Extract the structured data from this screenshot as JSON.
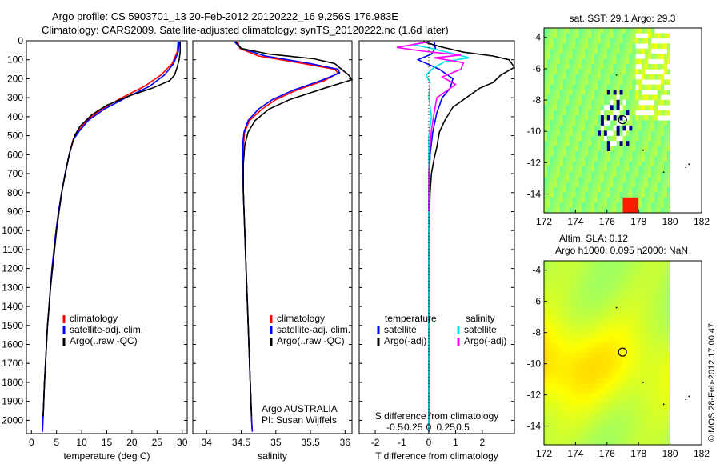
{
  "header": {
    "line1": "Argo profile: CS 5903701_13 20-Feb-2012 20120222_16 9.256S 176.983E",
    "line2": "Climatology: CARS2009. Satellite-adjusted climatology: synTS_20120222.nc (1.6d later)"
  },
  "colors": {
    "clim": "#ff0000",
    "sat": "#0000ff",
    "argo": "#000000",
    "sat_s": "#00e5e5",
    "argo_s": "#ff00ff"
  },
  "chart_data": [
    {
      "id": "temperature",
      "type": "line",
      "xlabel": "temperature (deg C)",
      "ylabel": "",
      "xlim": [
        -1,
        31
      ],
      "ylim": [
        2070,
        0
      ],
      "y_reversed": true,
      "xticks": [
        "0",
        "5",
        "10",
        "15",
        "20",
        "25",
        "30"
      ],
      "yticks": [
        "0",
        "100",
        "200",
        "300",
        "400",
        "500",
        "600",
        "700",
        "800",
        "900",
        "1000",
        "1100",
        "1200",
        "1300",
        "1400",
        "1500",
        "1600",
        "1700",
        "1800",
        "1900",
        "2000"
      ],
      "legend": [
        "climatology",
        "satellite-adj. clim.",
        "Argo(..raw -QC)"
      ],
      "series": [
        {
          "name": "climatology",
          "color": "#ff0000",
          "points": [
            [
              29.2,
              5
            ],
            [
              29.0,
              60
            ],
            [
              28.0,
              120
            ],
            [
              25.8,
              180
            ],
            [
              22.5,
              240
            ],
            [
              18.0,
              300
            ],
            [
              14.0,
              360
            ],
            [
              11.0,
              420
            ],
            [
              9.2,
              480
            ],
            [
              8.3,
              520
            ],
            [
              7.5,
              600
            ],
            [
              6.7,
              700
            ],
            [
              6.0,
              800
            ],
            [
              5.4,
              900
            ],
            [
              4.9,
              1000
            ],
            [
              4.5,
              1100
            ],
            [
              4.1,
              1200
            ],
            [
              3.8,
              1300
            ],
            [
              3.5,
              1400
            ],
            [
              3.2,
              1500
            ],
            [
              3.0,
              1600
            ],
            [
              2.8,
              1700
            ],
            [
              2.6,
              1800
            ],
            [
              2.45,
              1900
            ],
            [
              2.3,
              2000
            ],
            [
              2.2,
              2060
            ]
          ]
        },
        {
          "name": "satellite-adj. clim.",
          "color": "#0000ff",
          "points": [
            [
              29.4,
              5
            ],
            [
              29.2,
              60
            ],
            [
              28.3,
              120
            ],
            [
              26.5,
              180
            ],
            [
              23.5,
              240
            ],
            [
              18.8,
              300
            ],
            [
              14.5,
              360
            ],
            [
              11.3,
              420
            ],
            [
              9.4,
              480
            ],
            [
              8.4,
              520
            ],
            [
              7.5,
              600
            ],
            [
              6.7,
              700
            ],
            [
              6.0,
              800
            ],
            [
              5.4,
              900
            ],
            [
              4.9,
              1000
            ],
            [
              4.5,
              1100
            ],
            [
              4.1,
              1200
            ],
            [
              3.8,
              1300
            ],
            [
              3.5,
              1400
            ],
            [
              3.2,
              1500
            ],
            [
              3.0,
              1600
            ],
            [
              2.8,
              1700
            ],
            [
              2.6,
              1800
            ],
            [
              2.45,
              1900
            ],
            [
              2.3,
              2000
            ],
            [
              2.2,
              2060
            ]
          ]
        },
        {
          "name": "Argo(..raw -QC)",
          "color": "#000000",
          "points": [
            [
              29.6,
              5
            ],
            [
              29.6,
              60
            ],
            [
              29.4,
              100
            ],
            [
              29.0,
              140
            ],
            [
              28.5,
              180
            ],
            [
              27.5,
              210
            ],
            [
              24.0,
              250
            ],
            [
              19.5,
              290
            ],
            [
              15.0,
              340
            ],
            [
              12.0,
              390
            ],
            [
              9.7,
              450
            ],
            [
              8.6,
              500
            ],
            [
              7.7,
              580
            ],
            [
              6.9,
              680
            ],
            [
              6.1,
              790
            ],
            [
              5.5,
              900
            ],
            [
              5.0,
              1000
            ],
            [
              4.6,
              1100
            ],
            [
              4.2,
              1200
            ],
            [
              3.8,
              1300
            ],
            [
              3.5,
              1400
            ],
            [
              3.2,
              1500
            ],
            [
              3.0,
              1600
            ],
            [
              2.8,
              1700
            ],
            [
              2.6,
              1800
            ],
            [
              2.45,
              1900
            ],
            [
              2.35,
              1980
            ]
          ]
        }
      ]
    },
    {
      "id": "salinity",
      "type": "line",
      "xlabel": "salinity",
      "ylabel": "",
      "xlim": [
        33.8,
        36.1
      ],
      "ylim": [
        2070,
        0
      ],
      "y_reversed": true,
      "xticks": [
        "34",
        "34.5",
        "35",
        "35.5",
        "36"
      ],
      "legend": [
        "climatology",
        "satellite-adj. clim.",
        "Argo(..raw -QC)"
      ],
      "annotation": [
        "Argo AUSTRALIA",
        "PI: Susan Wijffels"
      ],
      "series": [
        {
          "name": "climatology",
          "color": "#ff0000",
          "points": [
            [
              34.45,
              5
            ],
            [
              34.48,
              40
            ],
            [
              34.75,
              80
            ],
            [
              35.4,
              120
            ],
            [
              35.85,
              150
            ],
            [
              35.9,
              170
            ],
            [
              35.7,
              210
            ],
            [
              35.3,
              260
            ],
            [
              35.0,
              310
            ],
            [
              34.8,
              360
            ],
            [
              34.62,
              420
            ],
            [
              34.55,
              480
            ],
            [
              34.53,
              550
            ],
            [
              34.52,
              650
            ],
            [
              34.53,
              800
            ],
            [
              34.55,
              1000
            ],
            [
              34.57,
              1200
            ],
            [
              34.59,
              1400
            ],
            [
              34.61,
              1600
            ],
            [
              34.63,
              1800
            ],
            [
              34.65,
              2000
            ],
            [
              34.66,
              2060
            ]
          ]
        },
        {
          "name": "satellite-adj. clim.",
          "color": "#0000ff",
          "points": [
            [
              34.4,
              5
            ],
            [
              34.5,
              40
            ],
            [
              34.85,
              80
            ],
            [
              35.5,
              120
            ],
            [
              35.9,
              150
            ],
            [
              35.92,
              170
            ],
            [
              35.65,
              210
            ],
            [
              35.25,
              260
            ],
            [
              34.95,
              310
            ],
            [
              34.75,
              360
            ],
            [
              34.6,
              420
            ],
            [
              34.54,
              480
            ],
            [
              34.52,
              550
            ],
            [
              34.52,
              650
            ],
            [
              34.53,
              800
            ],
            [
              34.55,
              1000
            ],
            [
              34.57,
              1200
            ],
            [
              34.59,
              1400
            ],
            [
              34.61,
              1600
            ],
            [
              34.63,
              1800
            ],
            [
              34.65,
              2000
            ],
            [
              34.66,
              2060
            ]
          ]
        },
        {
          "name": "Argo(..raw -QC)",
          "color": "#000000",
          "points": [
            [
              34.42,
              5
            ],
            [
              34.5,
              40
            ],
            [
              34.9,
              70
            ],
            [
              35.55,
              95
            ],
            [
              35.85,
              120
            ],
            [
              35.95,
              150
            ],
            [
              36.05,
              180
            ],
            [
              36.1,
              205
            ],
            [
              35.7,
              250
            ],
            [
              35.2,
              310
            ],
            [
              34.9,
              360
            ],
            [
              34.7,
              420
            ],
            [
              34.6,
              480
            ],
            [
              34.55,
              550
            ],
            [
              34.53,
              650
            ],
            [
              34.53,
              800
            ],
            [
              34.55,
              1000
            ],
            [
              34.57,
              1200
            ],
            [
              34.59,
              1400
            ],
            [
              34.61,
              1600
            ],
            [
              34.63,
              1800
            ],
            [
              34.65,
              1980
            ]
          ]
        }
      ]
    },
    {
      "id": "differences",
      "type": "line",
      "xlabel": "T difference from climatology",
      "xlabel_top": "S difference from climatology",
      "xlim": [
        -2.6,
        3.2
      ],
      "ylim": [
        2070,
        0
      ],
      "y_reversed": true,
      "xticks": [
        "-2",
        "-1",
        "0",
        "1",
        "2"
      ],
      "xticks_top": [
        "-0.5",
        "-0.25",
        "0",
        "0.25",
        "0.5"
      ],
      "legend_col1_title": "temperature",
      "legend_col2_title": "salinity",
      "legend": [
        "satellite",
        "Argo(-adj)",
        "satellite",
        "Argo(-adj)"
      ],
      "series": [
        {
          "name": "temperature satellite",
          "color": "#0000ff",
          "points": [
            [
              0.2,
              5
            ],
            [
              0.25,
              40
            ],
            [
              0.1,
              70
            ],
            [
              -0.4,
              100
            ],
            [
              0.4,
              150
            ],
            [
              0.9,
              200
            ],
            [
              0.8,
              250
            ],
            [
              0.5,
              300
            ],
            [
              0.3,
              380
            ],
            [
              0.15,
              480
            ],
            [
              0.05,
              600
            ],
            [
              0,
              800
            ],
            [
              0,
              1200
            ],
            [
              0,
              1600
            ],
            [
              0,
              2060
            ]
          ]
        },
        {
          "name": "temperature Argo(-adj)",
          "color": "#000000",
          "points": [
            [
              -0.2,
              5
            ],
            [
              0.4,
              30
            ],
            [
              1.3,
              60
            ],
            [
              2.4,
              80
            ],
            [
              3.0,
              100
            ],
            [
              3.2,
              140
            ],
            [
              2.7,
              180
            ],
            [
              2.4,
              220
            ],
            [
              1.9,
              250
            ],
            [
              1.5,
              290
            ],
            [
              0.9,
              350
            ],
            [
              0.6,
              420
            ],
            [
              0.4,
              480
            ],
            [
              0.3,
              560
            ],
            [
              0.2,
              620
            ],
            [
              0.1,
              700
            ],
            [
              0.05,
              800
            ],
            [
              0.03,
              900
            ],
            [
              0,
              1000
            ],
            [
              0,
              1500
            ],
            [
              0,
              2000
            ]
          ]
        },
        {
          "name": "salinity satellite",
          "color": "#00e5e5",
          "points": [
            [
              0,
              5
            ],
            [
              -0.6,
              20
            ],
            [
              0.1,
              40
            ],
            [
              1.0,
              70
            ],
            [
              1.5,
              90
            ],
            [
              0.6,
              110
            ],
            [
              0.2,
              140
            ],
            [
              -0.1,
              180
            ],
            [
              0.05,
              220
            ],
            [
              0.0,
              300
            ],
            [
              0.1,
              400
            ],
            [
              0.0,
              500
            ],
            [
              0,
              800
            ],
            [
              0,
              1200
            ],
            [
              0,
              1600
            ],
            [
              0,
              2060
            ]
          ]
        },
        {
          "name": "salinity Argo(-adj)",
          "color": "#ff00ff",
          "points": [
            [
              0,
              5
            ],
            [
              -1.2,
              35
            ],
            [
              -0.2,
              55
            ],
            [
              1.2,
              75
            ],
            [
              0.2,
              90
            ],
            [
              1.3,
              115
            ],
            [
              1.2,
              150
            ],
            [
              0.5,
              190
            ],
            [
              1.0,
              230
            ],
            [
              0.3,
              300
            ],
            [
              0.2,
              380
            ],
            [
              0.1,
              470
            ],
            [
              0.05,
              560
            ],
            [
              0,
              700
            ],
            [
              0,
              900
            ]
          ]
        }
      ]
    }
  ],
  "maps": {
    "top": {
      "title": "sat. SST: 29.1 Argo: 29.3",
      "title_line2": "",
      "xticks": [
        "172",
        "174",
        "176",
        "178",
        "180",
        "182"
      ],
      "yticks": [
        "-4",
        "-6",
        "-8",
        "-10",
        "-12",
        "-14"
      ],
      "xlim": [
        172,
        182
      ],
      "ylim": [
        -15.2,
        -3.4
      ],
      "profile_lon": 176.983,
      "profile_lat": -9.256,
      "colormap": "jet"
    },
    "bottom": {
      "title": "Altim. SLA: 0.12",
      "title_line2": "Argo h1000: 0.095 h2000: NaN",
      "xticks": [
        "172",
        "174",
        "176",
        "178",
        "180",
        "182"
      ],
      "yticks": [
        "-4",
        "-6",
        "-8",
        "-10",
        "-12",
        "-14"
      ],
      "xlim": [
        172,
        182
      ],
      "ylim": [
        -15.2,
        -3.4
      ],
      "profile_lon": 176.983,
      "profile_lat": -9.256,
      "colormap": "jet"
    }
  },
  "footer": {
    "credit": "©IMOS 28-Feb-2012 17:00:47"
  }
}
